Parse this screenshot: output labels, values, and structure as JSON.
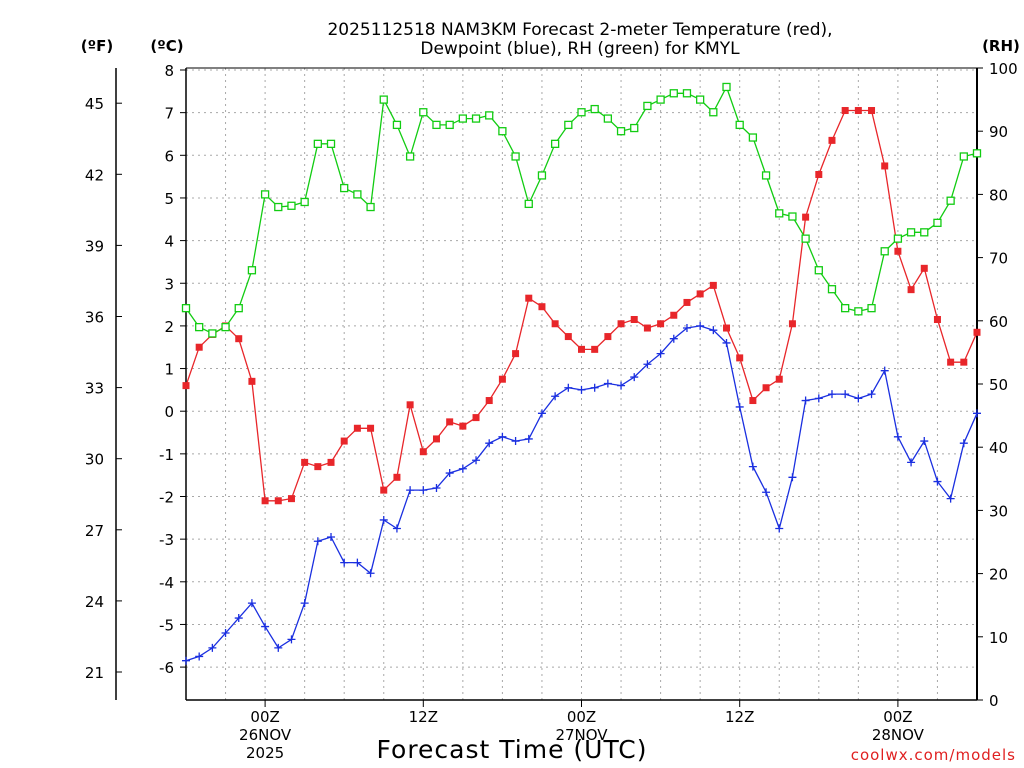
{
  "title_line1": "2025112518 NAM3KM Forecast 2-meter Temperature (red),",
  "title_line2": "Dewpoint (blue), RH (green) for KMYL",
  "units": {
    "fahrenheit": "(ºF)",
    "celsius": "(ºC)",
    "rh": "(RH)"
  },
  "x_title": "Forecast Time (UTC)",
  "credit": "coolwx.com/models",
  "x_ticks": [
    {
      "hour": 6,
      "line1": "00Z",
      "line2": "26NOV",
      "line3": "2025"
    },
    {
      "hour": 18,
      "line1": "12Z",
      "line2": "",
      "line3": ""
    },
    {
      "hour": 30,
      "line1": "00Z",
      "line2": "27NOV",
      "line3": ""
    },
    {
      "hour": 42,
      "line1": "12Z",
      "line2": "",
      "line3": ""
    },
    {
      "hour": 54,
      "line1": "00Z",
      "line2": "28NOV",
      "line3": ""
    }
  ],
  "celsius_ticks": [
    "8",
    "7",
    "6",
    "5",
    "4",
    "3",
    "2",
    "1",
    "0",
    "-1",
    "-2",
    "-3",
    "-4",
    "-5",
    "-6"
  ],
  "fahrenheit_ticks": [
    "45",
    "42",
    "39",
    "36",
    "33",
    "30",
    "27",
    "24",
    "21"
  ],
  "rh_ticks": [
    "100",
    "90",
    "80",
    "70",
    "60",
    "50",
    "40",
    "30",
    "20",
    "10",
    "0"
  ],
  "colors": {
    "temperature": "#e8262a",
    "dewpoint": "#1a2fe0",
    "rh": "#12cc12",
    "grid": "#a8a8a8"
  },
  "chart_data": {
    "type": "line",
    "x_unit": "forecast hour (from 2025-11-25 18Z)",
    "xlim": [
      0,
      60
    ],
    "ylim_celsius": [
      -6.8,
      8
    ],
    "ylim_rh": [
      0,
      100
    ],
    "x": [
      0,
      1,
      2,
      3,
      4,
      5,
      6,
      7,
      8,
      9,
      10,
      11,
      12,
      13,
      14,
      15,
      16,
      17,
      18,
      19,
      20,
      21,
      22,
      23,
      24,
      25,
      26,
      27,
      28,
      29,
      30,
      31,
      32,
      33,
      34,
      35,
      36,
      37,
      38,
      39,
      40,
      41,
      42,
      43,
      44,
      45,
      46,
      47,
      48,
      49,
      50,
      51,
      52,
      53,
      54,
      55,
      56,
      57,
      58,
      59,
      60
    ],
    "series": [
      {
        "name": "2-meter Temperature (°C)",
        "axis": "celsius",
        "values": [
          0.6,
          1.5,
          1.8,
          2.0,
          1.7,
          0.7,
          -2.1,
          -2.1,
          -2.05,
          -1.2,
          -1.3,
          -1.2,
          -0.7,
          -0.4,
          -0.4,
          -1.85,
          -1.55,
          0.15,
          -0.95,
          -0.65,
          -0.25,
          -0.35,
          -0.15,
          0.25,
          0.75,
          1.35,
          2.65,
          2.45,
          2.05,
          1.75,
          1.45,
          1.45,
          1.75,
          2.05,
          2.15,
          1.95,
          2.05,
          2.25,
          2.55,
          2.75,
          2.95,
          1.95,
          1.25,
          0.25,
          0.55,
          0.75,
          2.05,
          4.55,
          5.55,
          6.35,
          7.05,
          7.05,
          7.05,
          5.75,
          3.75,
          2.85,
          3.35,
          2.15,
          1.15,
          1.15,
          1.85
        ]
      },
      {
        "name": "Dewpoint (°C)",
        "axis": "celsius",
        "values": [
          -5.85,
          -5.75,
          -5.55,
          -5.2,
          -4.85,
          -4.5,
          -5.05,
          -5.55,
          -5.35,
          -4.5,
          -3.05,
          -2.95,
          -3.55,
          -3.55,
          -3.8,
          -2.55,
          -2.75,
          -1.85,
          -1.85,
          -1.8,
          -1.45,
          -1.35,
          -1.15,
          -0.75,
          -0.6,
          -0.7,
          -0.65,
          -0.05,
          0.35,
          0.55,
          0.5,
          0.55,
          0.65,
          0.6,
          0.8,
          1.1,
          1.35,
          1.7,
          1.95,
          2.0,
          1.9,
          1.6,
          0.1,
          -1.3,
          -1.9,
          -2.75,
          -1.55,
          0.25,
          0.3,
          0.4,
          0.4,
          0.3,
          0.4,
          0.95,
          -0.6,
          -1.2,
          -0.7,
          -1.65,
          -2.05,
          -0.75,
          -0.05
        ]
      },
      {
        "name": "RH (%)",
        "axis": "rh",
        "values": [
          62,
          59,
          58,
          59,
          62,
          68,
          80,
          78,
          78.2,
          78.8,
          88,
          88,
          81,
          80,
          78,
          95,
          91,
          86,
          93,
          91,
          91,
          92,
          92,
          92.5,
          90,
          86,
          78.5,
          83,
          88,
          91,
          93,
          93.5,
          92,
          90,
          90.5,
          94,
          95,
          96,
          96,
          95,
          93,
          97,
          91,
          89,
          83,
          77,
          76.5,
          73,
          68,
          65,
          62,
          61.5,
          62,
          71,
          73,
          74,
          74,
          75.5,
          79,
          86,
          86.5
        ]
      }
    ]
  }
}
